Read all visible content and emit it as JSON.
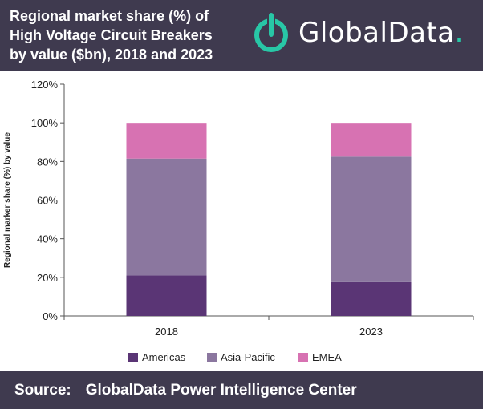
{
  "header": {
    "title_lines": [
      "Regional market share (%) of",
      "High Voltage Circuit Breakers",
      "by value ($bn), 2018 and 2023"
    ],
    "logo": {
      "text": "GlobalData",
      "dot": "."
    }
  },
  "footer": {
    "source_label": "Source:",
    "source_text": "GlobalData Power Intelligence Center"
  },
  "colors": {
    "header_bg": "#3f3a4f",
    "brand_accent": "#28c7a6",
    "americas": "#5a3575",
    "asia_pacific": "#8b779f",
    "emea": "#d772b2"
  },
  "chart_data": {
    "type": "bar",
    "stacked": true,
    "categories": [
      "2018",
      "2023"
    ],
    "series": [
      {
        "name": "Americas",
        "values": [
          21,
          17.5
        ]
      },
      {
        "name": "Asia-Pacific",
        "values": [
          60.5,
          65
        ]
      },
      {
        "name": "EMEA",
        "values": [
          18.5,
          17.5
        ]
      }
    ],
    "ylabel": "Regional marker share (%) by value",
    "xlabel": "",
    "ylim": [
      0,
      120
    ],
    "yticks": [
      0,
      20,
      40,
      60,
      80,
      100,
      120
    ],
    "ytick_labels": [
      "0%",
      "20%",
      "40%",
      "60%",
      "80%",
      "100%",
      "120%"
    ],
    "grid": false,
    "legend_position": "bottom"
  }
}
